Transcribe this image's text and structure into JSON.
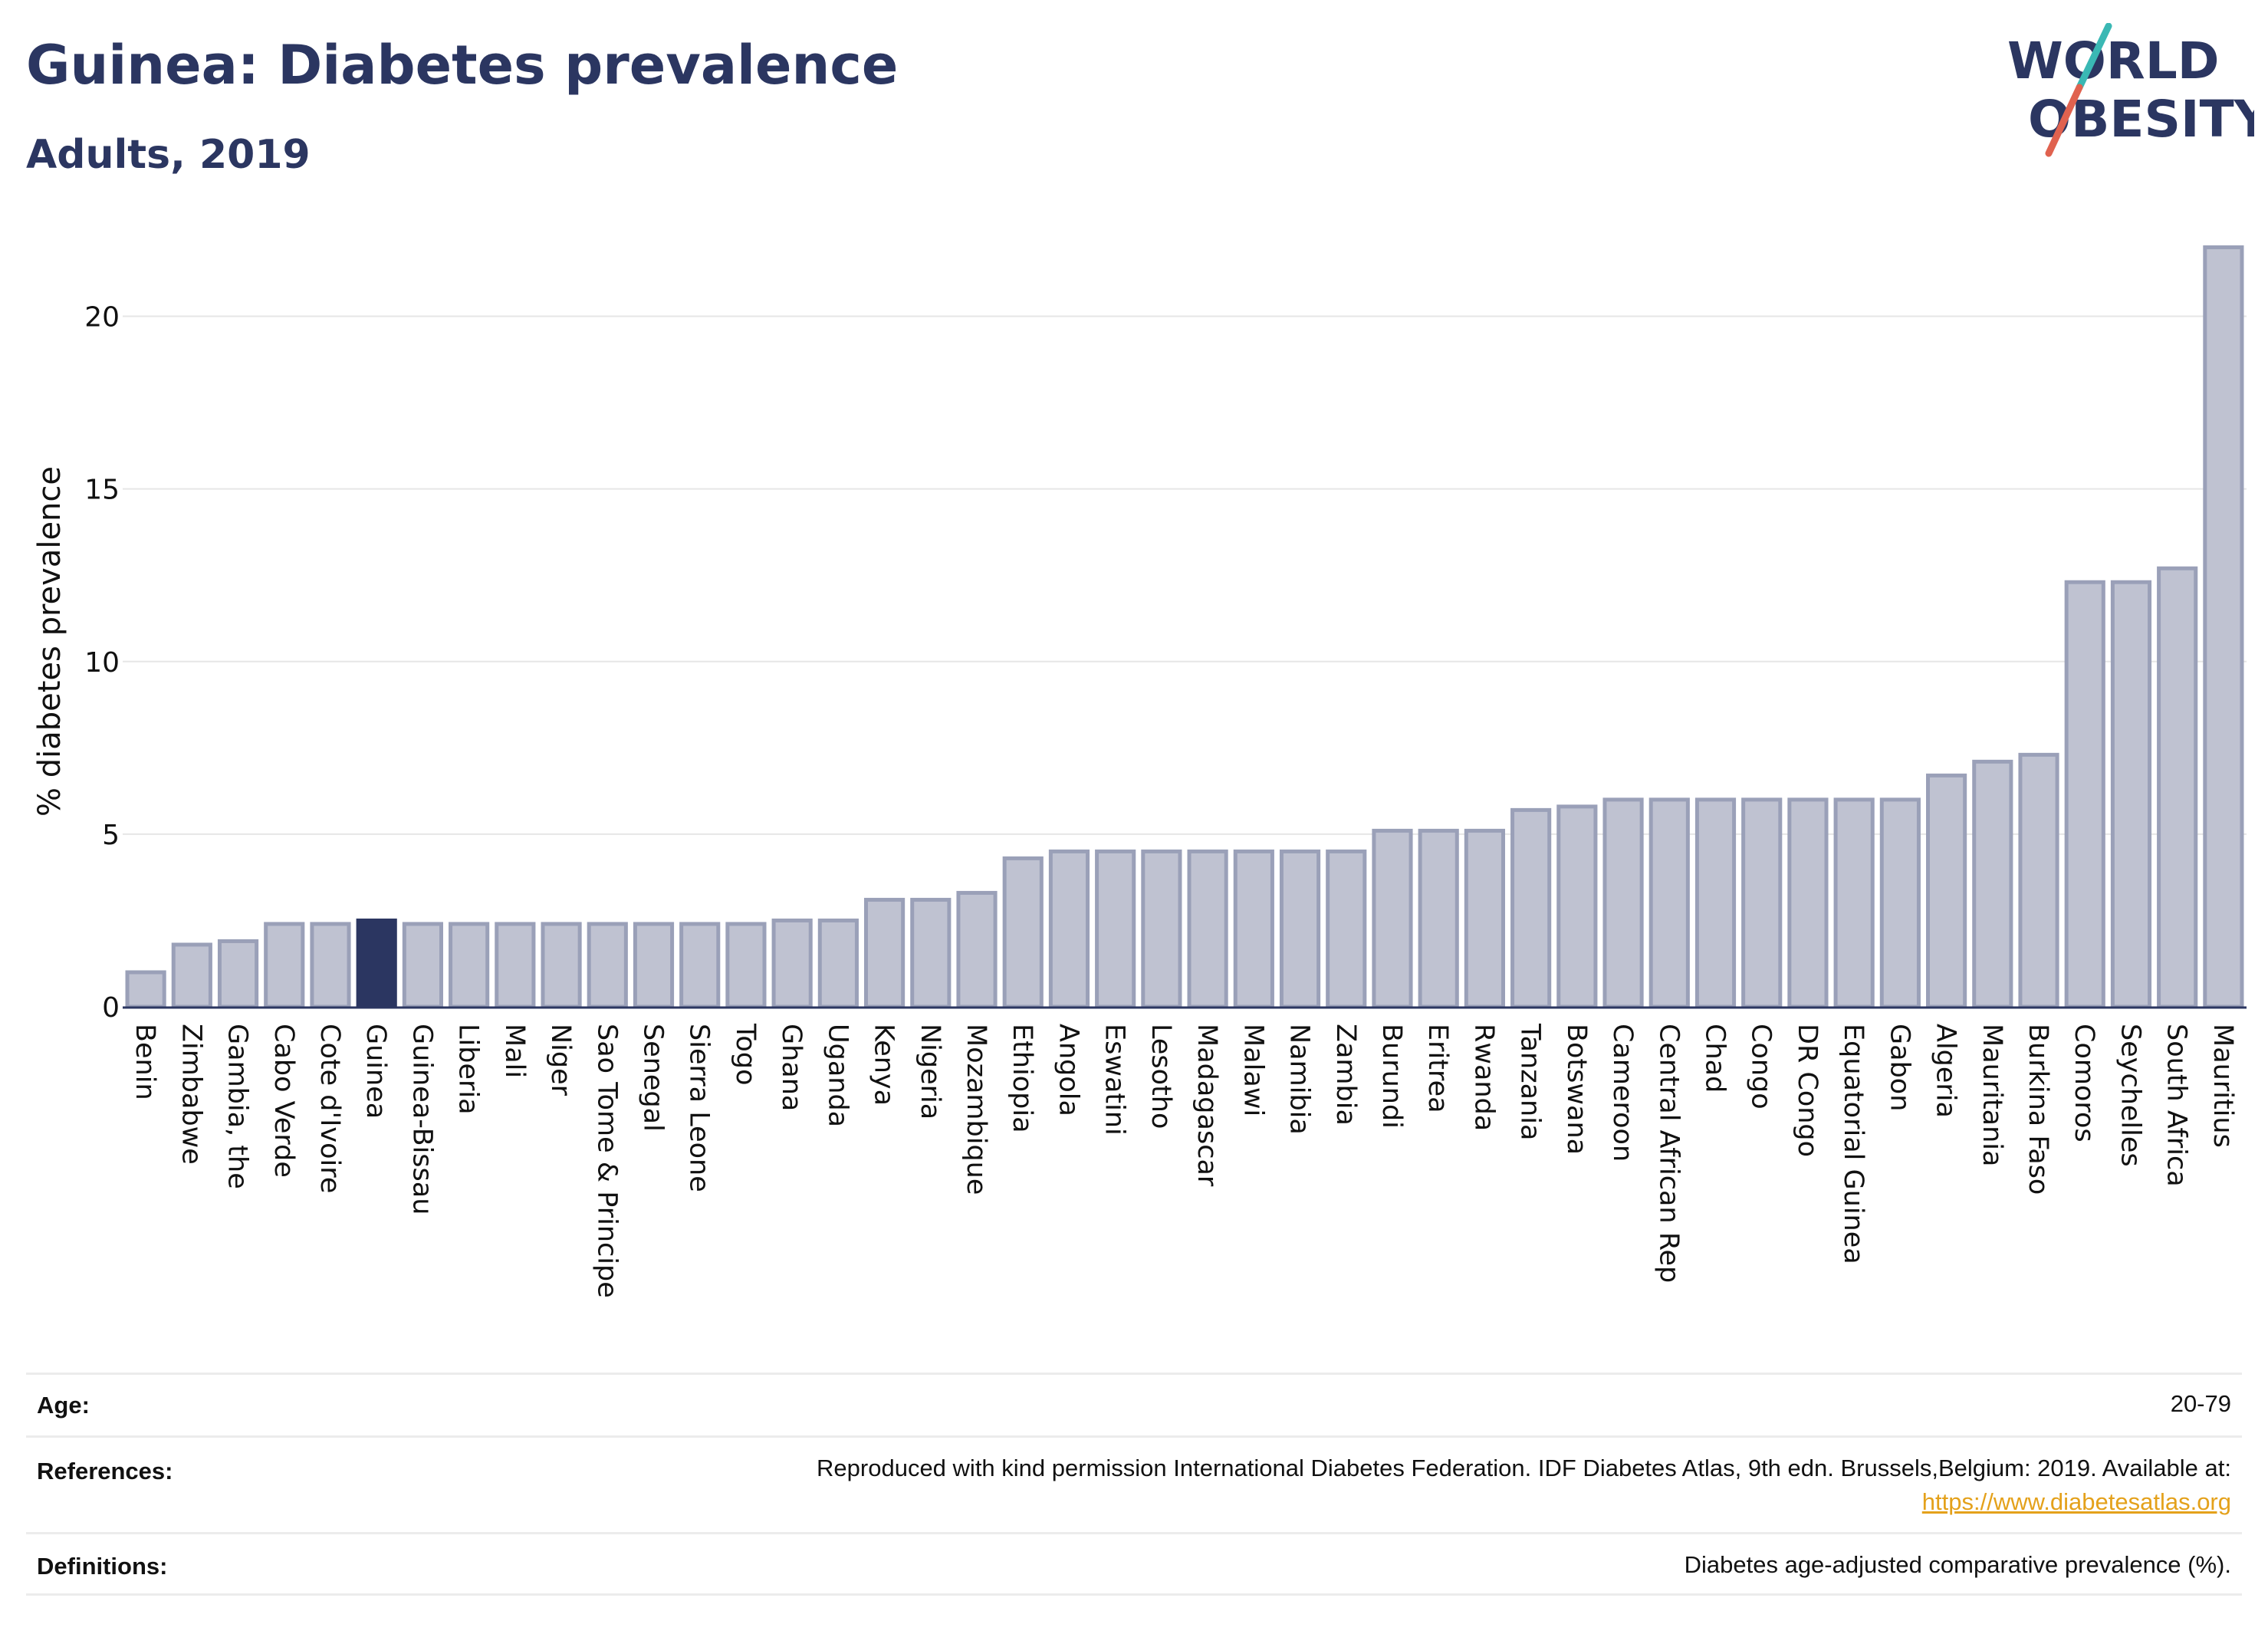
{
  "header": {
    "title": "Guinea: Diabetes prevalence",
    "subtitle": "Adults, 2019"
  },
  "logo": {
    "line1": "WORLD",
    "line2": "OBESITY",
    "colors": {
      "text": "#2b3661",
      "slash_top": "#3ab8b4",
      "slash_bottom": "#e0624f"
    }
  },
  "colors": {
    "bar": "#bfc2d1",
    "bar_border": "#9aa0b8",
    "highlight": "#2b3661",
    "grid": "#e6e6e6",
    "axis": "#2b3661"
  },
  "chart_data": {
    "type": "bar",
    "ylabel": "% diabetes prevalence",
    "ylim": [
      0,
      22.5
    ],
    "yticks": [
      0,
      5,
      10,
      15,
      20
    ],
    "grid": true,
    "highlight": "Guinea",
    "categories": [
      "Benin",
      "Zimbabwe",
      "Gambia, the",
      "Cabo Verde",
      "Cote d'Ivoire",
      "Guinea",
      "Guinea-Bissau",
      "Liberia",
      "Mali",
      "Niger",
      "Sao Tome & Principe",
      "Senegal",
      "Sierra Leone",
      "Togo",
      "Ghana",
      "Uganda",
      "Kenya",
      "Nigeria",
      "Mozambique",
      "Ethiopia",
      "Angola",
      "Eswatini",
      "Lesotho",
      "Madagascar",
      "Malawi",
      "Namibia",
      "Zambia",
      "Burundi",
      "Eritrea",
      "Rwanda",
      "Tanzania",
      "Botswana",
      "Cameroon",
      "Central African Rep",
      "Chad",
      "Congo",
      "DR Congo",
      "Equatorial Guinea",
      "Gabon",
      "Algeria",
      "Mauritania",
      "Burkina Faso",
      "Comoros",
      "Seychelles",
      "South Africa",
      "Mauritius"
    ],
    "values": [
      1.0,
      1.8,
      1.9,
      2.4,
      2.4,
      2.5,
      2.4,
      2.4,
      2.4,
      2.4,
      2.4,
      2.4,
      2.4,
      2.4,
      2.5,
      2.5,
      3.1,
      3.1,
      3.3,
      4.3,
      4.5,
      4.5,
      4.5,
      4.5,
      4.5,
      4.5,
      4.5,
      5.1,
      5.1,
      5.1,
      5.7,
      5.8,
      6.0,
      6.0,
      6.0,
      6.0,
      6.0,
      6.0,
      6.0,
      6.7,
      7.1,
      7.3,
      12.3,
      12.3,
      12.7,
      22.0
    ]
  },
  "info": {
    "age_label": "Age:",
    "age_value": "20-79",
    "references_label": "References:",
    "references_text": "Reproduced with kind permission International Diabetes Federation. IDF Diabetes Atlas, 9th edn. Brussels,Belgium: 2019. Available at:",
    "references_link": "https://www.diabetesatlas.org",
    "definitions_label": "Definitions:",
    "definitions_text": "Diabetes age-adjusted comparative prevalence (%)."
  }
}
